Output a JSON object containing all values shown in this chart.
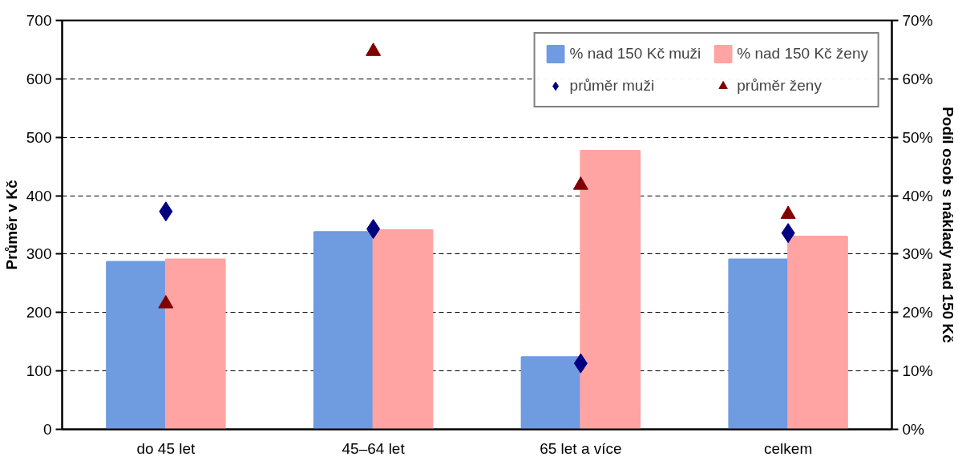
{
  "chart_data": {
    "type": "bar",
    "categories": [
      "do 45 let",
      "45–64 let",
      "65 let a více",
      "celkem"
    ],
    "ylabel": "Průměr v Kč",
    "y2label": "Podíl osob s náklady nad 150 Kč",
    "series": [
      {
        "name": "% nad 150 Kč muži",
        "axis": "y2",
        "color": "#6f9be0",
        "values": [
          28.7,
          33.8,
          12.4,
          29.1
        ]
      },
      {
        "name": "% nad 150 Kč ženy",
        "axis": "y2",
        "color": "#ffa3a3",
        "values": [
          29.1,
          34.1,
          47.7,
          33.0
        ]
      },
      {
        "name": "průměr muži",
        "type": "scatter",
        "marker": "diamond",
        "color": "#000080",
        "values": [
          373,
          343,
          113,
          336
        ]
      },
      {
        "name": "průměr ženy",
        "type": "scatter",
        "marker": "triangle",
        "color": "#800000",
        "values": [
          215,
          647,
          418,
          368
        ]
      }
    ],
    "ylim": [
      0,
      700
    ],
    "yticks": [
      0,
      100,
      200,
      300,
      400,
      500,
      600,
      700
    ],
    "y2lim": [
      0,
      70
    ],
    "y2ticks": [
      {
        "value": 0,
        "label": "0%"
      },
      {
        "value": 10,
        "label": "10%"
      },
      {
        "value": 20,
        "label": "20%"
      },
      {
        "value": 30,
        "label": "30%"
      },
      {
        "value": 40,
        "label": "40%"
      },
      {
        "value": 50,
        "label": "50%"
      },
      {
        "value": 60,
        "label": "60%"
      },
      {
        "value": 70,
        "label": "70%"
      }
    ],
    "grid": "y",
    "legend": "top right"
  }
}
